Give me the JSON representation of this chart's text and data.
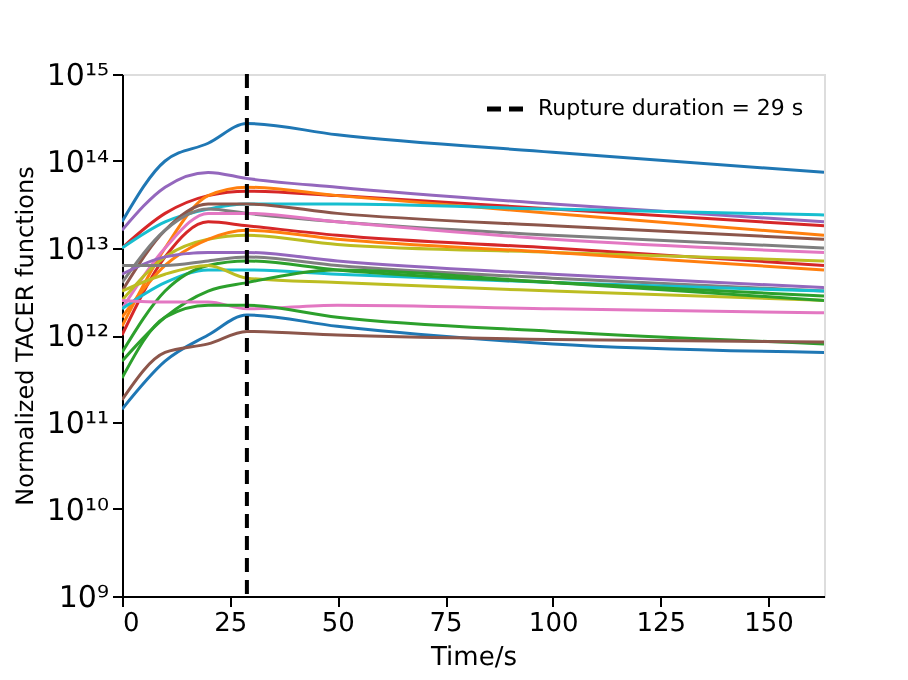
{
  "chart_data": {
    "type": "line",
    "xlabel": "Time/s",
    "ylabel": "Normalized TACER functions",
    "x": [
      0,
      10,
      20,
      29,
      50,
      100,
      163
    ],
    "series": [
      {
        "color": "#1f77b4",
        "values": [
          20000000000000.0,
          100000000000000.0,
          160000000000000.0,
          270000000000000.0,
          200000000000000.0,
          126000000000000.0,
          74000000000000.0
        ]
      },
      {
        "color": "#9467bd",
        "values": [
          16000000000000.0,
          50000000000000.0,
          74000000000000.0,
          63000000000000.0,
          50000000000000.0,
          32000000000000.0,
          20000000000000.0
        ]
      },
      {
        "color": "#d62728",
        "values": [
          10000000000000.0,
          25000000000000.0,
          40000000000000.0,
          45000000000000.0,
          40000000000000.0,
          28000000000000.0,
          18000000000000.0
        ]
      },
      {
        "color": "#ff7f0e",
        "values": [
          1260000000000.0,
          10000000000000.0,
          40000000000000.0,
          50000000000000.0,
          40000000000000.0,
          25000000000000.0,
          14000000000000.0
        ]
      },
      {
        "color": "#17becf",
        "values": [
          10000000000000.0,
          20000000000000.0,
          28000000000000.0,
          32000000000000.0,
          32000000000000.0,
          28000000000000.0,
          24000000000000.0
        ]
      },
      {
        "color": "#8c564b",
        "values": [
          3200000000000.0,
          16000000000000.0,
          32000000000000.0,
          32000000000000.0,
          25000000000000.0,
          18000000000000.0,
          12600000000000.0
        ]
      },
      {
        "color": "#7f7f7f",
        "values": [
          4000000000000.0,
          16000000000000.0,
          28000000000000.0,
          25000000000000.0,
          20000000000000.0,
          14000000000000.0,
          10000000000000.0
        ]
      },
      {
        "color": "#e377c2",
        "values": [
          2000000000000.0,
          10000000000000.0,
          25000000000000.0,
          25000000000000.0,
          20000000000000.0,
          12600000000000.0,
          8900000000000.0
        ]
      },
      {
        "color": "#d62728",
        "values": [
          1000000000000.0,
          7900000000000.0,
          20000000000000.0,
          18000000000000.0,
          14000000000000.0,
          10000000000000.0,
          6300000000000.0
        ]
      },
      {
        "color": "#bcbd22",
        "values": [
          2500000000000.0,
          7900000000000.0,
          12600000000000.0,
          14000000000000.0,
          11000000000000.0,
          8900000000000.0,
          7100000000000.0
        ]
      },
      {
        "color": "#ff7f0e",
        "values": [
          1600000000000.0,
          6300000000000.0,
          12600000000000.0,
          16000000000000.0,
          12600000000000.0,
          8900000000000.0,
          5600000000000.0
        ]
      },
      {
        "color": "#9467bd",
        "values": [
          5000000000000.0,
          7900000000000.0,
          8900000000000.0,
          8900000000000.0,
          7100000000000.0,
          5000000000000.0,
          3500000000000.0
        ]
      },
      {
        "color": "#7f7f7f",
        "values": [
          6300000000000.0,
          6300000000000.0,
          7100000000000.0,
          7900000000000.0,
          6300000000000.0,
          4500000000000.0,
          3200000000000.0
        ]
      },
      {
        "color": "#17becf",
        "values": [
          2000000000000.0,
          4000000000000.0,
          5600000000000.0,
          5600000000000.0,
          5000000000000.0,
          4000000000000.0,
          3200000000000.0
        ]
      },
      {
        "color": "#2ca02c",
        "values": [
          630000000000.0,
          3200000000000.0,
          6300000000000.0,
          7100000000000.0,
          5600000000000.0,
          4000000000000.0,
          2800000000000.0
        ]
      },
      {
        "color": "#bcbd22",
        "values": [
          3200000000000.0,
          5000000000000.0,
          6300000000000.0,
          4500000000000.0,
          4000000000000.0,
          3200000000000.0,
          2500000000000.0
        ]
      },
      {
        "color": "#2ca02c",
        "values": [
          500000000000.0,
          1600000000000.0,
          3200000000000.0,
          4000000000000.0,
          5600000000000.0,
          4000000000000.0,
          2500000000000.0
        ]
      },
      {
        "color": "#e377c2",
        "values": [
          2500000000000.0,
          2400000000000.0,
          2400000000000.0,
          2000000000000.0,
          2200000000000.0,
          2000000000000.0,
          1800000000000.0
        ]
      },
      {
        "color": "#2ca02c",
        "values": [
          320000000000.0,
          1600000000000.0,
          2200000000000.0,
          2200000000000.0,
          1600000000000.0,
          1100000000000.0,
          790000000000.0
        ]
      },
      {
        "color": "#1f77b4",
        "values": [
          140000000000.0,
          500000000000.0,
          1000000000000.0,
          1700000000000.0,
          1260000000000.0,
          790000000000.0,
          630000000000.0
        ]
      },
      {
        "color": "#8c564b",
        "values": [
          180000000000.0,
          630000000000.0,
          790000000000.0,
          1100000000000.0,
          1000000000000.0,
          890000000000.0,
          830000000000.0
        ]
      }
    ],
    "xlim": [
      0,
      163
    ],
    "xticks": [
      0,
      25,
      50,
      75,
      100,
      125,
      150
    ],
    "ylim": [
      1000000000.0,
      1000000000000000.0
    ],
    "log": "y",
    "yticks": [
      {
        "value": 1000000000.0,
        "label": "10⁹"
      },
      {
        "value": 10000000000.0,
        "label": "10¹⁰"
      },
      {
        "value": 100000000000.0,
        "label": "10¹¹"
      },
      {
        "value": 1000000000000.0,
        "label": "10¹²"
      },
      {
        "value": 10000000000000.0,
        "label": "10¹³"
      },
      {
        "value": 100000000000000.0,
        "label": "10¹⁴"
      },
      {
        "value": 1000000000000000.0,
        "label": "10¹⁵"
      }
    ],
    "ref_lines": [
      {
        "axis": "x",
        "value": 29,
        "label": "Rupture duration =  29 s",
        "color": "#000000",
        "line_style": "dashed"
      }
    ],
    "legend": "top right",
    "grid": false
  }
}
